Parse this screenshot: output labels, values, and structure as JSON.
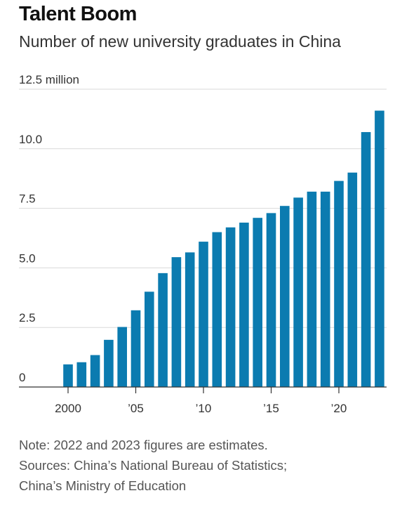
{
  "title": "Talent Boom",
  "subtitle": "Number of new university graduates in China",
  "chart_data": {
    "type": "bar",
    "title": "Talent Boom",
    "subtitle": "Number of new university graduates in China",
    "unit": "million",
    "x": [
      2000,
      2001,
      2002,
      2003,
      2004,
      2005,
      2006,
      2007,
      2008,
      2009,
      2010,
      2011,
      2012,
      2013,
      2014,
      2015,
      2016,
      2017,
      2018,
      2019,
      2020,
      2021,
      2022,
      2023
    ],
    "values": [
      0.95,
      1.04,
      1.34,
      1.98,
      2.52,
      3.22,
      4.0,
      4.78,
      5.45,
      5.65,
      6.1,
      6.5,
      6.7,
      6.9,
      7.1,
      7.3,
      7.6,
      7.95,
      8.2,
      8.2,
      8.65,
      9.0,
      10.7,
      11.6
    ],
    "ylim": [
      0,
      12.5
    ],
    "y_ticks": [
      0,
      2.5,
      5.0,
      7.5,
      10.0,
      12.5
    ],
    "y_tick_labels": [
      "0",
      "2.5",
      "5.0",
      "7.5",
      "10.0",
      "12.5 million"
    ],
    "x_ticks": [
      2000,
      2005,
      2010,
      2015,
      2020
    ],
    "x_tick_labels": [
      "2000",
      "’05",
      "’10",
      "’15",
      "’20"
    ],
    "grid": true,
    "bar_color": "#0b7bb0",
    "grid_color": "#d9d9d9",
    "axis_color": "#333333"
  },
  "notes": {
    "note": "Note: 2022 and 2023 figures are estimates.",
    "sources_line1": "Sources: China’s National Bureau of Statistics;",
    "sources_line2": "China’s Ministry of Education"
  }
}
